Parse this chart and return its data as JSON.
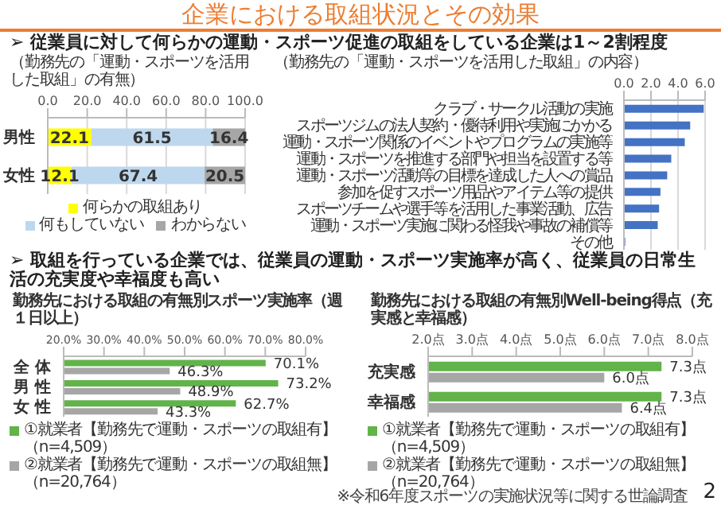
{
  "chart_data": [
    {
      "type": "bar",
      "orientation": "horizontal",
      "stacked": true,
      "annotations": [
        "企業における取組状況とその効果",
        "➢ 従業員に対して何らかの運動・スポーツ促進の取組をしている企業は1～2割程度"
      ],
      "title": "（勤務先の「運動・スポーツを活用した取組」の有無）",
      "categories": [
        "男性",
        "女性"
      ],
      "series": [
        {
          "name": "何らかの取組あり",
          "color": "#ffff00",
          "values": [
            22.1,
            12.1
          ]
        },
        {
          "name": "何もしていない",
          "color": "#bdd7ee",
          "values": [
            61.5,
            67.4
          ]
        },
        {
          "name": "わからない",
          "color": "#a6a6a6",
          "values": [
            16.4,
            20.5
          ]
        }
      ],
      "xlim": [
        0,
        100
      ],
      "xticks": [
        {
          "value": 0,
          "label": "0.0"
        },
        {
          "value": 20,
          "label": "20.0"
        },
        {
          "value": 40,
          "label": "40.0"
        },
        {
          "value": 60,
          "label": "60.0"
        },
        {
          "value": 80,
          "label": "80.0"
        },
        {
          "value": 100,
          "label": "100.0"
        }
      ],
      "grid": "x",
      "legend": "bottom",
      "data_labels": true
    },
    {
      "type": "bar",
      "orientation": "horizontal",
      "title": "（勤務先の「運動・スポーツを活用した取組」の内容）",
      "categories": [
        "クラブ・サークル活動の実施",
        "スポーツジムの法人契約・優待利用や実施にかかる",
        "運動・スポーツ関係のイベントやプログラムの実施等",
        "運動・スポーツを推進する部門や担当を設置する等",
        "運動・スポーツ活動等の目標を達成した人への賞品",
        "参加を促すスポーツ用品やアイテム等の提供",
        "スポーツチームや選手等を活用した事業活動、広告",
        "運動・スポーツ実施に関わる怪我や事故の補償等",
        "その他"
      ],
      "values": [
        5.9,
        4.9,
        4.5,
        3.5,
        3.2,
        2.7,
        2.6,
        2.5,
        0.1
      ],
      "color": "#4472c4",
      "xlim": [
        0,
        6
      ],
      "xticks": [
        {
          "value": 0,
          "label": "0.0"
        },
        {
          "value": 2,
          "label": "2.0"
        },
        {
          "value": 4,
          "label": "4.0"
        },
        {
          "value": 6,
          "label": "6.0"
        }
      ],
      "grid": "x"
    },
    {
      "type": "bar",
      "orientation": "horizontal",
      "annotations": [
        "➢ 取組を行っている企業では、従業員の運動・スポーツ実施率が高く、従業員の日常生活の充実度や幸福度も高い"
      ],
      "title": "勤務先における取組の有無別スポーツ実施率（週１日以上）",
      "categories": [
        "全 体",
        "男 性",
        "女 性"
      ],
      "series": [
        {
          "name": "①就業者【勤務先で運動・スポーツの取組有】（n=4,509）",
          "color": "#62b34a",
          "values": [
            70.1,
            73.2,
            62.7
          ],
          "value_labels": [
            "70.1%",
            "73.2%",
            "62.7%"
          ]
        },
        {
          "name": "②就業者【勤務先で運動・スポーツの取組無】（n=20,764）",
          "color": "#a6a6a6",
          "values": [
            46.3,
            48.9,
            43.3
          ],
          "value_labels": [
            "46.3%",
            "48.9%",
            "43.3%"
          ]
        }
      ],
      "xlim": [
        20,
        80
      ],
      "xticks": [
        {
          "value": 20,
          "label": "20.0%"
        },
        {
          "value": 30,
          "label": "30.0%"
        },
        {
          "value": 40,
          "label": "40.0%"
        },
        {
          "value": 50,
          "label": "50.0%"
        },
        {
          "value": 60,
          "label": "60.0%"
        },
        {
          "value": 70,
          "label": "70.0%"
        },
        {
          "value": 80,
          "label": "80.0%"
        }
      ],
      "legend": "bottom"
    },
    {
      "type": "bar",
      "orientation": "horizontal",
      "annotations": [
        "※令和6年度スポーツの実施状況等に関する世論調査",
        "2"
      ],
      "title": "勤務先における取組の有無別Well-being得点（充実感と幸福感）",
      "categories": [
        "充実感",
        "幸福感"
      ],
      "series": [
        {
          "name": "①就業者【勤務先で運動・スポーツの取組有】（n=4,509）",
          "color": "#62b34a",
          "values": [
            7.3,
            7.3
          ],
          "value_labels": [
            "7.3点",
            "7.3点"
          ]
        },
        {
          "name": "②就業者【勤務先で運動・スポーツの取組無】（n=20,764）",
          "color": "#a6a6a6",
          "values": [
            6.0,
            6.4
          ],
          "value_labels": [
            "6.0点",
            "6.4点"
          ]
        }
      ],
      "xlim": [
        2,
        8
      ],
      "xticks": [
        {
          "value": 2,
          "label": "2.0点"
        },
        {
          "value": 3,
          "label": "3.0点"
        },
        {
          "value": 4,
          "label": "4.0点"
        },
        {
          "value": 5,
          "label": "5.0点"
        },
        {
          "value": 6,
          "label": "6.0点"
        },
        {
          "value": 7,
          "label": "7.0点"
        },
        {
          "value": 8,
          "label": "8.0点"
        }
      ],
      "legend": "bottom"
    }
  ]
}
